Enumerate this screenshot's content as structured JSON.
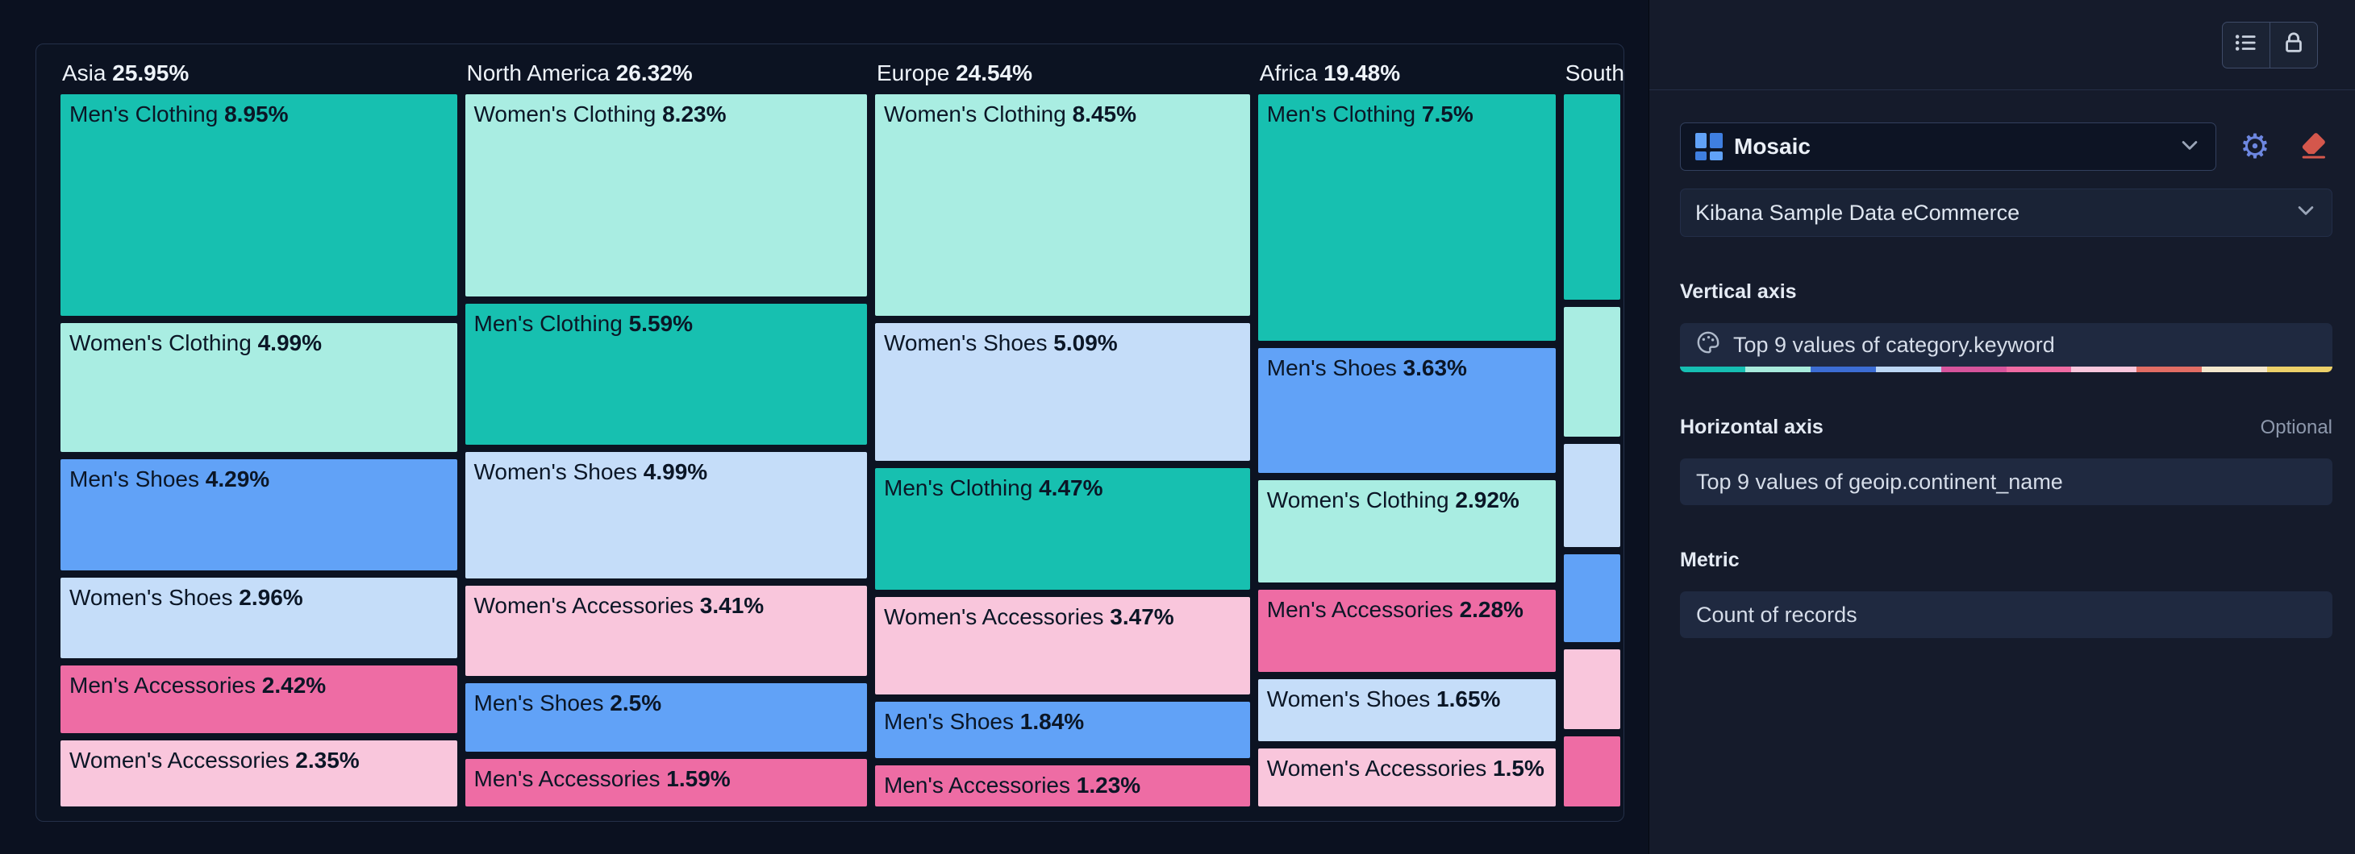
{
  "right_panel": {
    "toolbar": {
      "icons": [
        "list-icon",
        "lock-icon"
      ]
    },
    "chart_type": {
      "label": "Mosaic",
      "icon": "mosaic-grid-icon"
    },
    "tools": {
      "settings_icon": "gear-icon",
      "clear_icon": "eraser-icon"
    },
    "data_view": {
      "label": "Kibana Sample Data eCommerce"
    },
    "sections": {
      "vertical_axis": {
        "label": "Vertical axis",
        "field": "Top 9 values of category.keyword",
        "field_icon": "palette-icon"
      },
      "horizontal_axis": {
        "label": "Horizontal axis",
        "optional": "Optional",
        "field": "Top 9 values of geoip.continent_name"
      },
      "metric": {
        "label": "Metric",
        "field": "Count of records"
      }
    },
    "palette": [
      "#16bfb3",
      "#a8ebdd",
      "#3c6dd4",
      "#bcd7f5",
      "#d6549c",
      "#ef6ba3",
      "#f9c6dc",
      "#e26d64",
      "#f3e7cd",
      "#ecd069"
    ]
  },
  "chart_data": {
    "type": "mosaic",
    "title": "",
    "vertical_axis": "Top 9 values of category.keyword",
    "horizontal_axis": "Top 9 values of geoip.continent_name",
    "metric": "Count of records",
    "legend": "off",
    "colors": {
      "Men's Clothing": "#17c0b0",
      "Women's Clothing": "#a9ede2",
      "Men's Shoes": "#61a2f7",
      "Women's Shoes": "#c5ddf9",
      "Men's Accessories": "#ee6ca4",
      "Women's Accessories": "#f9c6dc"
    },
    "columns": [
      {
        "name": "Asia",
        "pct": "25.95%",
        "value": 25.95,
        "items": [
          {
            "category": "Men's Clothing",
            "pct": "8.95%",
            "value": 8.95
          },
          {
            "category": "Women's Clothing",
            "pct": "4.99%",
            "value": 4.99
          },
          {
            "category": "Men's Shoes",
            "pct": "4.29%",
            "value": 4.29
          },
          {
            "category": "Women's Shoes",
            "pct": "2.96%",
            "value": 2.96
          },
          {
            "category": "Men's Accessories",
            "pct": "2.42%",
            "value": 2.42
          },
          {
            "category": "Women's Accessories",
            "pct": "2.35%",
            "value": 2.35
          }
        ]
      },
      {
        "name": "North America",
        "pct": "26.32%",
        "value": 26.32,
        "items": [
          {
            "category": "Women's Clothing",
            "pct": "8.23%",
            "value": 8.23
          },
          {
            "category": "Men's Clothing",
            "pct": "5.59%",
            "value": 5.59
          },
          {
            "category": "Women's Shoes",
            "pct": "4.99%",
            "value": 4.99
          },
          {
            "category": "Women's Accessories",
            "pct": "3.41%",
            "value": 3.41
          },
          {
            "category": "Men's Shoes",
            "pct": "2.5%",
            "value": 2.5
          },
          {
            "category": "Men's Accessories",
            "pct": "1.59%",
            "value": 1.59
          }
        ]
      },
      {
        "name": "Europe",
        "pct": "24.54%",
        "value": 24.54,
        "items": [
          {
            "category": "Women's Clothing",
            "pct": "8.45%",
            "value": 8.45
          },
          {
            "category": "Women's Shoes",
            "pct": "5.09%",
            "value": 5.09
          },
          {
            "category": "Men's Clothing",
            "pct": "4.47%",
            "value": 4.47
          },
          {
            "category": "Women's Accessories",
            "pct": "3.47%",
            "value": 3.47
          },
          {
            "category": "Men's Shoes",
            "pct": "1.84%",
            "value": 1.84
          },
          {
            "category": "Men's Accessories",
            "pct": "1.23%",
            "value": 1.23
          }
        ]
      },
      {
        "name": "Africa",
        "pct": "19.48%",
        "value": 19.48,
        "items": [
          {
            "category": "Men's Clothing",
            "pct": "7.5%",
            "value": 7.5
          },
          {
            "category": "Men's Shoes",
            "pct": "3.63%",
            "value": 3.63
          },
          {
            "category": "Women's Clothing",
            "pct": "2.92%",
            "value": 2.92
          },
          {
            "category": "Men's Accessories",
            "pct": "2.28%",
            "value": 2.28
          },
          {
            "category": "Women's Shoes",
            "pct": "1.65%",
            "value": 1.65
          },
          {
            "category": "Women's Accessories",
            "pct": "1.5%",
            "value": 1.5
          }
        ]
      },
      {
        "name": "South America",
        "pct": "",
        "value": 3.71,
        "clipped": true,
        "labels_visible": false,
        "items": [
          {
            "category": "Men's Clothing",
            "pct": "",
            "value": 1.18
          },
          {
            "category": "Women's Clothing",
            "pct": "",
            "value": 0.72
          },
          {
            "category": "Women's Shoes",
            "pct": "",
            "value": 0.56
          },
          {
            "category": "Men's Shoes",
            "pct": "",
            "value": 0.47
          },
          {
            "category": "Women's Accessories",
            "pct": "",
            "value": 0.42
          },
          {
            "category": "Men's Accessories",
            "pct": "",
            "value": 0.36
          }
        ]
      }
    ]
  }
}
